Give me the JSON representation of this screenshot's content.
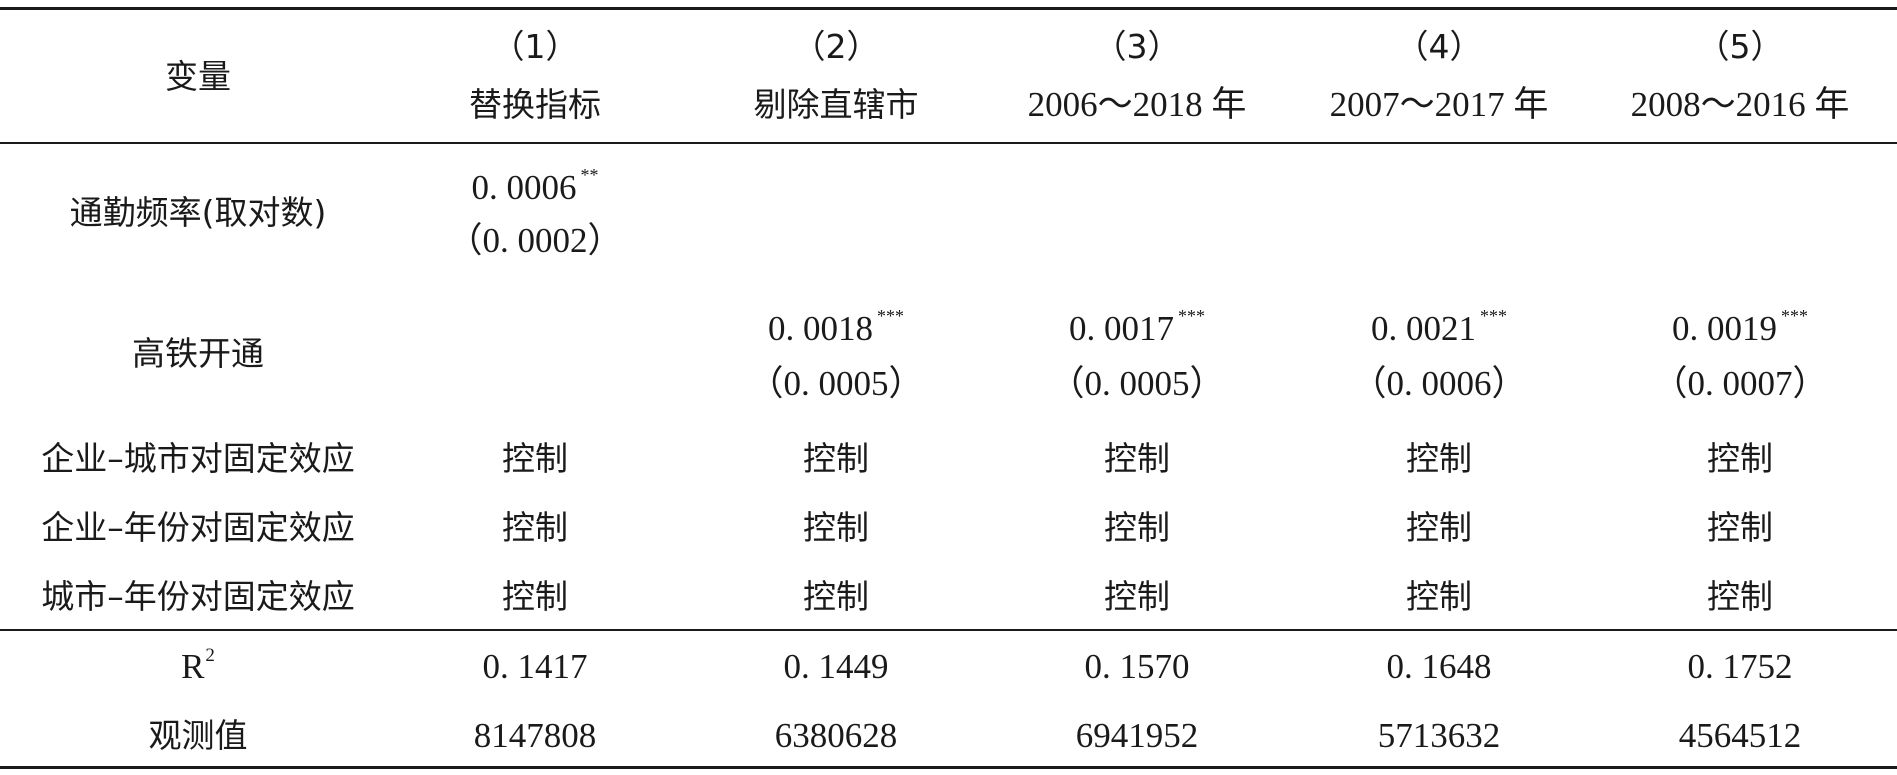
{
  "header": {
    "variable_label": "变量",
    "columns": [
      {
        "number": "（1）",
        "label": "替换指标"
      },
      {
        "number": "（2）",
        "label": "剔除直辖市"
      },
      {
        "number": "（3）",
        "label": "2006～2018 年"
      },
      {
        "number": "（4）",
        "label": "2007～2017 年"
      },
      {
        "number": "（5）",
        "label": "2008～2016 年"
      }
    ]
  },
  "rows": {
    "commute": {
      "label": "通勤频率(取对数)",
      "coef": "0. 0006",
      "stars": "**",
      "se": "（0. 0002）"
    },
    "hsr": {
      "label": "高铁开通",
      "cells": [
        {
          "coef": "0. 0018",
          "stars": "***",
          "se": "（0. 0005）"
        },
        {
          "coef": "0. 0017",
          "stars": "***",
          "se": "（0. 0005）"
        },
        {
          "coef": "0. 0021",
          "stars": "***",
          "se": "（0. 0006）"
        },
        {
          "coef": "0. 0019",
          "stars": "***",
          "se": "（0. 0007）"
        }
      ]
    },
    "fixed_effects": [
      {
        "label": "企业–城市对固定效应",
        "values": [
          "控制",
          "控制",
          "控制",
          "控制",
          "控制"
        ]
      },
      {
        "label": "企业–年份对固定效应",
        "values": [
          "控制",
          "控制",
          "控制",
          "控制",
          "控制"
        ]
      },
      {
        "label": "城市–年份对固定效应",
        "values": [
          "控制",
          "控制",
          "控制",
          "控制",
          "控制"
        ]
      }
    ],
    "r2": {
      "label_base": "R",
      "label_sup": "2",
      "values": [
        "0. 1417",
        "0. 1449",
        "0. 1570",
        "0. 1648",
        "0. 1752"
      ]
    },
    "obs": {
      "label": "观测值",
      "values": [
        "8147808",
        "6380628",
        "6941952",
        "5713632",
        "4564512"
      ]
    }
  }
}
